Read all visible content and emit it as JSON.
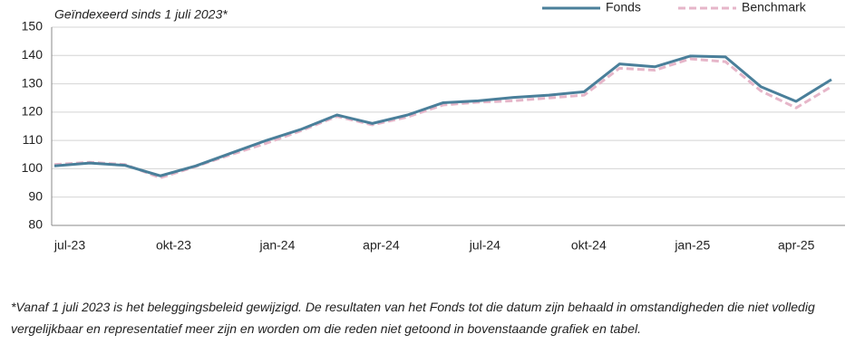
{
  "chart_data": {
    "type": "line",
    "subtitle": "Geïndexeerd sinds 1 juli 2023*",
    "categories": [
      "jul-23",
      null,
      null,
      "okt-23",
      null,
      null,
      "jan-24",
      null,
      null,
      "apr-24",
      null,
      null,
      "jul-24",
      null,
      null,
      "okt-24",
      null,
      null,
      "jan-25",
      null,
      null,
      "apr-25",
      null
    ],
    "series": [
      {
        "name": "Fonds",
        "color": "#4a7f9a",
        "dashed": false,
        "values": [
          101,
          102,
          101.2,
          97.5,
          101,
          105.5,
          110,
          114,
          119,
          116,
          119,
          123.3,
          124,
          125.2,
          126,
          127.2,
          137,
          136,
          139.8,
          139.5,
          129,
          123.8,
          131.5
        ]
      },
      {
        "name": "Benchmark",
        "color": "#e6b6c9",
        "dashed": true,
        "values": [
          101.5,
          102.3,
          101.5,
          96.8,
          100.8,
          105,
          109,
          113.5,
          118.5,
          115.5,
          118.3,
          122.5,
          123.5,
          124,
          125,
          126,
          135.5,
          134.8,
          138.8,
          137.8,
          127.5,
          121.5,
          129
        ]
      }
    ],
    "ylim": [
      80,
      150
    ],
    "yticks": [
      80,
      90,
      100,
      110,
      120,
      130,
      140,
      150
    ],
    "grid": true,
    "legend": "top-right",
    "footnote": "*Vanaf 1 juli 2023 is het beleggingsbeleid gewijzigd. De resultaten van het Fonds tot die datum zijn behaald in omstandigheden die niet volledig vergelijkbaar en representatief meer zijn en worden om die reden niet getoond in bovenstaande grafiek en tabel."
  }
}
